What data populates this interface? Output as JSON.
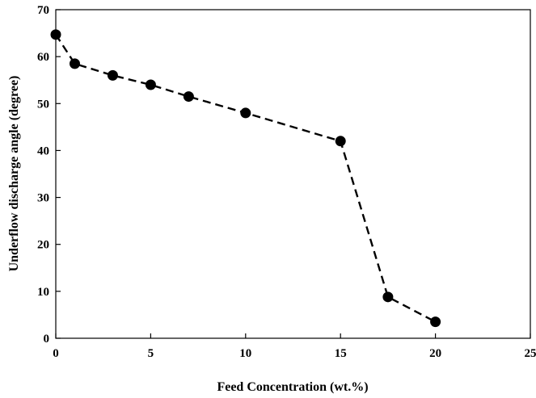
{
  "chart_data": {
    "type": "line",
    "title": "",
    "xlabel": "Feed Concentration (wt.%)",
    "ylabel": "Underflow discharge angle (degree)",
    "xlim": [
      0,
      25
    ],
    "ylim": [
      0,
      70
    ],
    "xticks": [
      0,
      5,
      10,
      15,
      20,
      25
    ],
    "yticks": [
      0,
      10,
      20,
      30,
      40,
      50,
      60,
      70
    ],
    "grid": false,
    "legend": "none",
    "line_style": "dashed",
    "marker": "filled-circle",
    "color": "#000000",
    "series": [
      {
        "x": [
          0,
          1,
          3,
          5,
          7,
          10,
          15,
          17.5,
          20
        ],
        "values": [
          64.7,
          58.5,
          56,
          54,
          51.5,
          48,
          42,
          8.8,
          3.5
        ]
      }
    ]
  }
}
